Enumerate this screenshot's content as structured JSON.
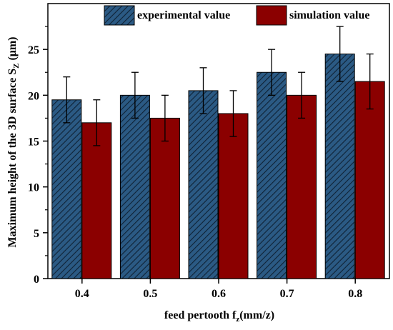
{
  "chart_data": {
    "type": "bar",
    "categories": [
      "0.4",
      "0.5",
      "0.6",
      "0.7",
      "0.8"
    ],
    "series": [
      {
        "name": "experimental value",
        "values": [
          19.5,
          20,
          20.5,
          22.5,
          24.5
        ],
        "errors": [
          2.5,
          2.5,
          2.5,
          2.5,
          3
        ],
        "color": "#1f4e79",
        "pattern": "diagonal-hatch"
      },
      {
        "name": "simulation value",
        "values": [
          17,
          17.5,
          18,
          20,
          21.5
        ],
        "errors": [
          2.5,
          2.5,
          2.5,
          2.5,
          3
        ],
        "color": "#8b0000",
        "pattern": "solid"
      }
    ],
    "title": "",
    "xlabel": {
      "prefix": "feed  pertooth f",
      "subscript": "z",
      "suffix": "(mm/z)"
    },
    "ylabel": {
      "prefix": "Maximum height of the 3D surface S",
      "subscript": "Z",
      "suffix": " (μm)"
    },
    "ylim": [
      0,
      30
    ],
    "yticks": [
      "0",
      "5",
      "10",
      "15",
      "20",
      "25"
    ],
    "grid": false,
    "legend": "top"
  }
}
